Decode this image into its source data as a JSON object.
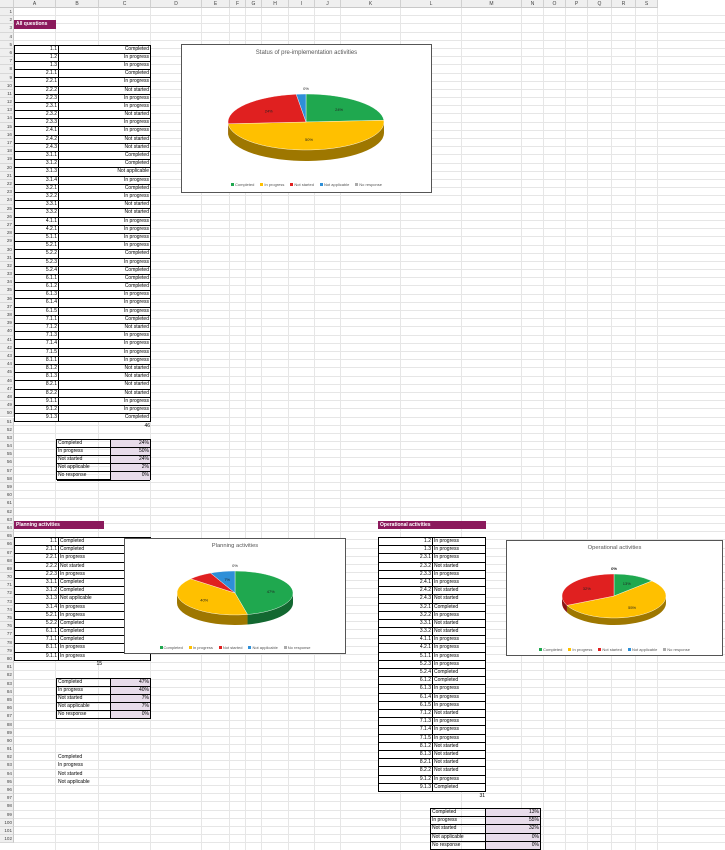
{
  "columns": [
    "A",
    "B",
    "C",
    "D",
    "E",
    "F",
    "G",
    "H",
    "I",
    "J",
    "K",
    "L",
    "M",
    "N",
    "O",
    "P",
    "Q",
    "R",
    "S"
  ],
  "rows_count": 102,
  "colors": {
    "completed": "#1fa84f",
    "in_progress": "#ffc000",
    "not_started": "#e02020",
    "not_applicable": "#2e8fd8",
    "no_response": "#aaaaaa",
    "header_band": "#8b1a5c",
    "summary_fill": "#e8dcea"
  },
  "all": {
    "header": "All questions",
    "rows": [
      [
        "1.1",
        "Completed"
      ],
      [
        "1.2",
        "In progress"
      ],
      [
        "1.3",
        "In progress"
      ],
      [
        "2.1.1",
        "Completed"
      ],
      [
        "2.2.1",
        "In progress"
      ],
      [
        "2.2.2",
        "Not started"
      ],
      [
        "2.2.3",
        "In progress"
      ],
      [
        "2.3.1",
        "In progress"
      ],
      [
        "2.3.2",
        "Not started"
      ],
      [
        "2.3.3",
        "In progress"
      ],
      [
        "2.4.1",
        "In progress"
      ],
      [
        "2.4.2",
        "Not started"
      ],
      [
        "2.4.3",
        "Not started"
      ],
      [
        "3.1.1",
        "Completed"
      ],
      [
        "3.1.2",
        "Completed"
      ],
      [
        "3.1.3",
        "Not applicable"
      ],
      [
        "3.1.4",
        "In progress"
      ],
      [
        "3.2.1",
        "Completed"
      ],
      [
        "3.2.2",
        "In progress"
      ],
      [
        "3.3.1",
        "Not started"
      ],
      [
        "3.3.2",
        "Not started"
      ],
      [
        "4.1.1",
        "In progress"
      ],
      [
        "4.2.1",
        "In progress"
      ],
      [
        "5.1.1",
        "In progress"
      ],
      [
        "5.2.1",
        "In progress"
      ],
      [
        "5.2.2",
        "Completed"
      ],
      [
        "5.2.3",
        "In progress"
      ],
      [
        "5.2.4",
        "Completed"
      ],
      [
        "6.1.1",
        "Completed"
      ],
      [
        "6.1.2",
        "Completed"
      ],
      [
        "6.1.3",
        "In progress"
      ],
      [
        "6.1.4",
        "In progress"
      ],
      [
        "6.1.5",
        "In progress"
      ],
      [
        "7.1.1",
        "Completed"
      ],
      [
        "7.1.2",
        "Not started"
      ],
      [
        "7.1.3",
        "In progress"
      ],
      [
        "7.1.4",
        "In progress"
      ],
      [
        "7.1.5",
        "In progress"
      ],
      [
        "8.1.1",
        "In progress"
      ],
      [
        "8.1.2",
        "Not started"
      ],
      [
        "8.1.3",
        "Not started"
      ],
      [
        "8.2.1",
        "Not started"
      ],
      [
        "8.2.2",
        "Not started"
      ],
      [
        "9.1.1",
        "In progress"
      ],
      [
        "9.1.2",
        "In progress"
      ],
      [
        "9.1.3",
        "Completed"
      ]
    ],
    "count": "46",
    "summary": [
      [
        "Completed",
        "24%"
      ],
      [
        "In progress",
        "50%"
      ],
      [
        "Not started",
        "24%"
      ],
      [
        "Not applicable",
        "2%"
      ],
      [
        "No response",
        "0%"
      ]
    ]
  },
  "planning": {
    "header": "Planning activities",
    "rows": [
      [
        "1.1",
        "Completed"
      ],
      [
        "2.1.1",
        "Completed"
      ],
      [
        "2.2.1",
        "In progress"
      ],
      [
        "2.2.2",
        "Not started"
      ],
      [
        "2.2.3",
        "In progress"
      ],
      [
        "3.1.1",
        "Completed"
      ],
      [
        "3.1.2",
        "Completed"
      ],
      [
        "3.1.3",
        "Not applicable"
      ],
      [
        "3.1.4",
        "In progress"
      ],
      [
        "5.2.1",
        "In progress"
      ],
      [
        "5.2.2",
        "Completed"
      ],
      [
        "6.1.1",
        "Completed"
      ],
      [
        "7.1.1",
        "Completed"
      ],
      [
        "8.1.1",
        "In progress"
      ],
      [
        "9.1.1",
        "In progress"
      ]
    ],
    "count": "15",
    "summary": [
      [
        "Completed",
        "47%"
      ],
      [
        "In progress",
        "40%"
      ],
      [
        "Not started",
        "7%"
      ],
      [
        "Not applicable",
        "7%"
      ],
      [
        "No response",
        "0%"
      ]
    ],
    "labels_below": [
      "Completed",
      "In progress",
      "Not started",
      "Not applicable"
    ]
  },
  "operational": {
    "header": "Operational activities",
    "rows": [
      [
        "1.2",
        "In progress"
      ],
      [
        "1.3",
        "In progress"
      ],
      [
        "2.3.1",
        "In progress"
      ],
      [
        "2.3.2",
        "Not started"
      ],
      [
        "2.3.3",
        "In progress"
      ],
      [
        "2.4.1",
        "In progress"
      ],
      [
        "2.4.2",
        "Not started"
      ],
      [
        "2.4.3",
        "Not started"
      ],
      [
        "3.2.1",
        "Completed"
      ],
      [
        "3.2.2",
        "In progress"
      ],
      [
        "3.3.1",
        "Not started"
      ],
      [
        "3.3.2",
        "Not started"
      ],
      [
        "4.1.1",
        "In progress"
      ],
      [
        "4.2.1",
        "In progress"
      ],
      [
        "5.1.1",
        "In progress"
      ],
      [
        "5.2.3",
        "In progress"
      ],
      [
        "5.2.4",
        "Completed"
      ],
      [
        "6.1.2",
        "Completed"
      ],
      [
        "6.1.3",
        "In progress"
      ],
      [
        "6.1.4",
        "In progress"
      ],
      [
        "6.1.5",
        "In progress"
      ],
      [
        "7.1.2",
        "Not started"
      ],
      [
        "7.1.3",
        "In progress"
      ],
      [
        "7.1.4",
        "In progress"
      ],
      [
        "7.1.5",
        "In progress"
      ],
      [
        "8.1.2",
        "Not started"
      ],
      [
        "8.1.3",
        "Not started"
      ],
      [
        "8.2.1",
        "Not started"
      ],
      [
        "8.2.2",
        "Not started"
      ],
      [
        "9.1.2",
        "In progress"
      ],
      [
        "9.1.3",
        "Completed"
      ]
    ],
    "count": "31",
    "summary": [
      [
        "Completed",
        "13%"
      ],
      [
        "In progress",
        "55%"
      ],
      [
        "Not started",
        "32%"
      ],
      [
        "Not applicable",
        "0%"
      ],
      [
        "No response",
        "0%"
      ]
    ]
  },
  "chart_data": [
    {
      "type": "pie",
      "title": "Status of pre-implementation activities",
      "categories": [
        "Completed",
        "In progress",
        "Not started",
        "Not applicable",
        "No response"
      ],
      "values": [
        24,
        50,
        24,
        2,
        0
      ],
      "labels": [
        "24%",
        "50%",
        "24%",
        "",
        "0%"
      ],
      "legend": "bottom"
    },
    {
      "type": "pie",
      "title": "Planning activities",
      "categories": [
        "Completed",
        "In progress",
        "Not started",
        "Not applicable",
        "No response"
      ],
      "values": [
        47,
        40,
        7,
        7,
        0
      ],
      "labels": [
        "47%",
        "40%",
        "",
        "7%",
        "0%"
      ],
      "legend": "bottom"
    },
    {
      "type": "pie",
      "title": "Operational activities",
      "categories": [
        "Completed",
        "In progress",
        "Not started",
        "Not applicable",
        "No response"
      ],
      "values": [
        13,
        55,
        32,
        0,
        0
      ],
      "labels": [
        "13%",
        "55%",
        "32%",
        "0%",
        "0%"
      ],
      "legend": "bottom"
    }
  ]
}
